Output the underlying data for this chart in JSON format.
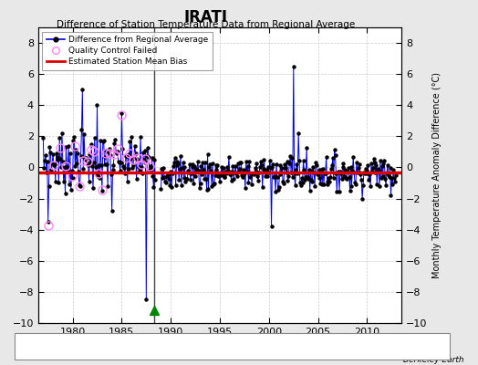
{
  "title": "IRATI",
  "subtitle": "Difference of Station Temperature Data from Regional Average",
  "ylabel": "Monthly Temperature Anomaly Difference (°C)",
  "credit": "Berkeley Earth",
  "xlim": [
    1976.5,
    2013.5
  ],
  "ylim": [
    -10,
    9
  ],
  "yticks": [
    -10,
    -8,
    -6,
    -4,
    -2,
    0,
    2,
    4,
    6,
    8
  ],
  "xticks": [
    1980,
    1985,
    1990,
    1995,
    2000,
    2005,
    2010
  ],
  "bias_level": -0.3,
  "vertical_line_x": 1988.3,
  "record_gap_x": 1988.3,
  "record_gap_y": -9.2,
  "bg_color": "#e8e8e8",
  "plot_bg": "#ffffff",
  "line_color": "#0000dd",
  "bias_color": "#dd0000",
  "qc_color": "#ff88ff",
  "marker_color": "#000000",
  "grid_color": "#cccccc"
}
